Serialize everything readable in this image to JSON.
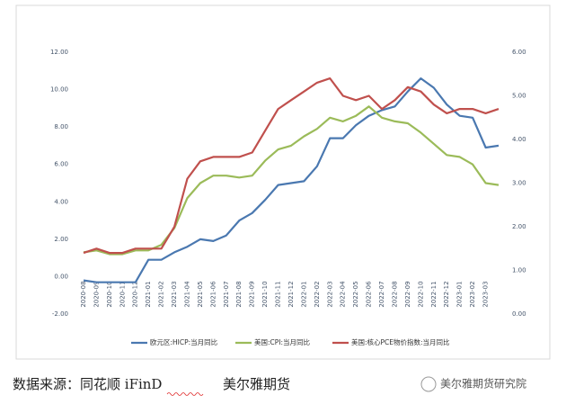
{
  "chart_data": {
    "type": "line",
    "categories": [
      "2020-08",
      "2020-09",
      "2020-10",
      "2020-11",
      "2020-12",
      "2021-01",
      "2021-02",
      "2021-03",
      "2021-04",
      "2021-05",
      "2021-06",
      "2021-07",
      "2021-08",
      "2021-09",
      "2021-10",
      "2021-11",
      "2021-12",
      "2022-01",
      "2022-02",
      "2022-03",
      "2022-04",
      "2022-05",
      "2022-06",
      "2022-07",
      "2022-08",
      "2022-09",
      "2022-10",
      "2022-11",
      "2022-12",
      "2023-01",
      "2023-02",
      "2023-03",
      null
    ],
    "series": [
      {
        "name": "欧元区:HICP:当月同比",
        "color": "#4a78b0",
        "values": [
          -0.2,
          -0.3,
          -0.3,
          -0.3,
          -0.3,
          0.9,
          0.9,
          1.3,
          1.6,
          2.0,
          1.9,
          2.2,
          3.0,
          3.4,
          4.1,
          4.9,
          5.0,
          5.1,
          5.9,
          7.4,
          7.4,
          8.1,
          8.6,
          8.9,
          9.1,
          9.9,
          10.6,
          10.1,
          9.2,
          8.6,
          8.5,
          6.9,
          7.0
        ]
      },
      {
        "name": "美国:CPI:当月同比",
        "color": "#9bbb59",
        "values": [
          1.3,
          1.4,
          1.2,
          1.2,
          1.4,
          1.4,
          1.7,
          2.6,
          4.2,
          5.0,
          5.4,
          5.4,
          5.3,
          5.4,
          6.2,
          6.8,
          7.0,
          7.5,
          7.9,
          8.5,
          8.3,
          8.6,
          9.1,
          8.5,
          8.3,
          8.2,
          7.7,
          7.1,
          6.5,
          6.4,
          6.0,
          5.0,
          4.9
        ]
      },
      {
        "name": "美国:核心PCE物价指数:当月同比",
        "color": "#c0504d",
        "axis": "y2",
        "values": [
          1.4,
          1.5,
          1.4,
          1.4,
          1.5,
          1.5,
          1.5,
          2.0,
          3.1,
          3.5,
          3.6,
          3.6,
          3.6,
          3.7,
          4.2,
          4.7,
          4.9,
          5.1,
          5.3,
          5.4,
          5.0,
          4.9,
          5.0,
          4.7,
          4.9,
          5.2,
          5.1,
          4.8,
          4.6,
          4.7,
          4.7,
          4.6,
          4.7
        ]
      }
    ],
    "ylim": [
      -2,
      12
    ],
    "yticks": [
      {
        "value": -2,
        "label": "-2.00"
      },
      {
        "value": 0,
        "label": "0.00"
      },
      {
        "value": 2,
        "label": "2.00"
      },
      {
        "value": 4,
        "label": "4.00"
      },
      {
        "value": 6,
        "label": "6.00"
      },
      {
        "value": 8,
        "label": "8.00"
      },
      {
        "value": 10,
        "label": "10.00"
      },
      {
        "value": 12,
        "label": "12.00"
      }
    ],
    "y2lim": [
      0,
      6
    ],
    "y2ticks": [
      {
        "value": 0,
        "label": "0.00"
      },
      {
        "value": 1,
        "label": "1.00"
      },
      {
        "value": 2,
        "label": "2.00"
      },
      {
        "value": 3,
        "label": "3.00"
      },
      {
        "value": 4,
        "label": "4.00"
      },
      {
        "value": 5,
        "label": "5.00"
      },
      {
        "value": 6,
        "label": "6.00"
      }
    ],
    "grid": false,
    "legend": "bottom"
  },
  "footer": {
    "source": "数据来源：同花顺 iFinD",
    "company": "美尔雅期货",
    "watermark": "美尔雅期货研究院"
  }
}
